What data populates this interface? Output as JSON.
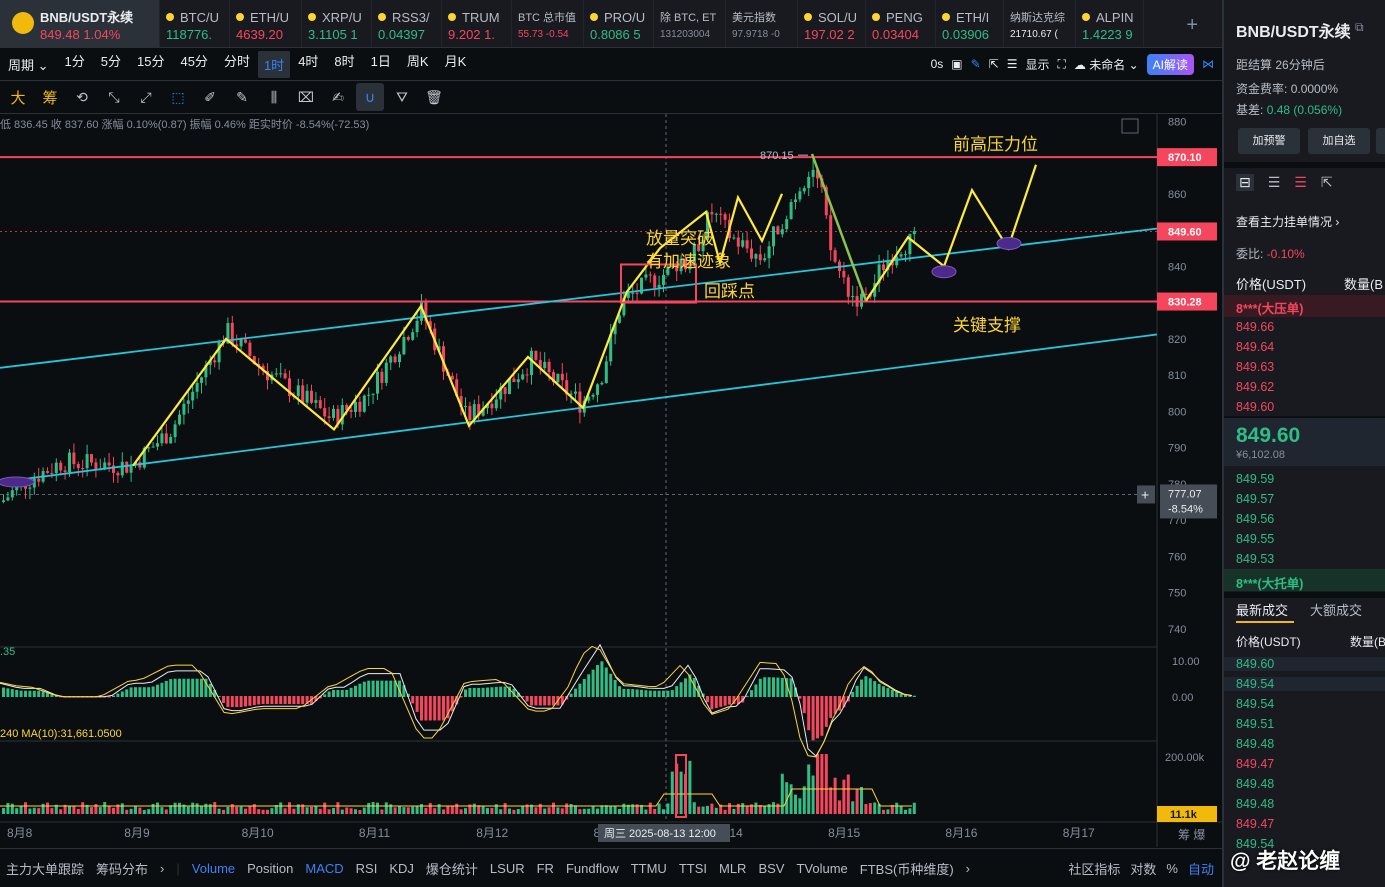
{
  "tickers": [
    {
      "name": "BNB/USDT永续",
      "price": "849.48",
      "change": "1.04%",
      "color": "#f6465d"
    },
    {
      "name": "BTC/U",
      "price": "118776.",
      "color": "#2ebd85"
    },
    {
      "name": "ETH/U",
      "price": "4639.20",
      "color": "#f6465d"
    },
    {
      "name": "XRP/U",
      "price": "3.1105 1",
      "color": "#2ebd85"
    },
    {
      "name": "RSS3/",
      "price": "0.04397",
      "color": "#2ebd85"
    },
    {
      "name": "TRUM",
      "price": "9.202 1.",
      "color": "#f6465d"
    },
    {
      "name": "BTC 总市值",
      "price": "55.73 -0.54",
      "color": "#f6465d"
    },
    {
      "name": "PRO/U",
      "price": "0.8086 5",
      "color": "#2ebd85"
    },
    {
      "name": "除 BTC, ET",
      "price": "131203004",
      "color": "#848e9c"
    },
    {
      "name": "美元指数",
      "price": "97.9718 -0",
      "color": "#848e9c"
    },
    {
      "name": "SOL/U",
      "price": "197.02 2",
      "color": "#f6465d"
    },
    {
      "name": "PENG",
      "price": "0.03404",
      "color": "#f6465d"
    },
    {
      "name": "ETH/I",
      "price": "0.03906",
      "color": "#2ebd85"
    },
    {
      "name": "纳斯达克综",
      "price": "21710.67 (",
      "color": "#eaecef"
    },
    {
      "name": "ALPIN",
      "price": "1.4223 9",
      "color": "#2ebd85"
    }
  ],
  "toolbar": {
    "period_label": "周期",
    "intervals": [
      "1分",
      "5分",
      "15分",
      "45分",
      "分时",
      "1时",
      "4时",
      "8时",
      "1日",
      "周K",
      "月K"
    ],
    "active_interval": "1时",
    "countdown": "0s",
    "display_label": "显示",
    "layout_name": "未命名",
    "ai_label": "AI解读"
  },
  "drawing_tools": {
    "char1": "大",
    "char2": "筹"
  },
  "info_line": {
    "text": "低 836.45  收 837.60  涨幅 0.10%(0.87)  振幅 0.46%  距实时价 -8.54%(-72.53)"
  },
  "chart_data": {
    "type": "candlestick",
    "y_axis": {
      "min": 735,
      "max": 882,
      "ticks": [
        880.0,
        870.0,
        860.0,
        850.0,
        840.0,
        830.0,
        820.0,
        810.0,
        800.0,
        790.0,
        780.0,
        770.0,
        760.0,
        750.0,
        740.0
      ]
    },
    "x_axis": {
      "labels": [
        "8月8",
        "8月9",
        "8月10",
        "8月11",
        "8月12",
        "8月13",
        "8月14",
        "8月15",
        "8月16",
        "8月17"
      ],
      "crosshair_label": "周三 2025-08-13 12:00"
    },
    "price_lines": [
      {
        "value": 870.1,
        "label": "870.10",
        "color": "#f6465d"
      },
      {
        "value": 830.28,
        "label": "830.28",
        "color": "#f6465d"
      },
      {
        "value": 849.6,
        "label": "849.60",
        "color": "#f6465d"
      }
    ],
    "crosshair_price": {
      "value": 777.07,
      "label": "777.07",
      "pct": "-8.54%"
    },
    "high_marker": "870.15",
    "annotations": [
      "前高压力位",
      "放量突破",
      "有加速迹象",
      "回踩点",
      "关键支撑"
    ],
    "macd": {
      "ticks": [
        "10.00",
        "0.00"
      ],
      "left_label": ".35"
    },
    "volume": {
      "label": "240  MA(10):31,661.0500",
      "ticks": [
        "200.00k"
      ],
      "current_label": "11.1k"
    },
    "corner_right": "筹  爆"
  },
  "bottombar": {
    "items": [
      "主力大单跟踪",
      "筹码分布"
    ],
    "indicators": [
      "Volume",
      "Position",
      "MACD",
      "RSI",
      "KDJ",
      "爆仓统计",
      "LSUR",
      "FR",
      "Fundflow",
      "TTMU",
      "TTSI",
      "MLR",
      "BSV",
      "TVolume",
      "FTBS(币种维度)"
    ],
    "active": [
      "Volume",
      "MACD"
    ],
    "right": [
      "社区指标",
      "对数",
      "%",
      "自动"
    ]
  },
  "side": {
    "title": "BNB/USDT永续",
    "settle_label": "距结算",
    "settle_value": "26分钟后",
    "funding_label": "资金费率:",
    "funding_value": "0.0000%",
    "basis_label": "基差:",
    "basis_value": "0.48 (0.056%)",
    "btn_alert": "加预警",
    "btn_fav": "加自选",
    "orderbook_link": "查看主力挂单情况",
    "ratio_label": "委比:",
    "ratio_value": "-0.10%",
    "col_price": "价格(USDT)",
    "col_qty": "数量(B",
    "asks_tag": "8***(大压单)",
    "asks": [
      "849.66",
      "849.64",
      "849.63",
      "849.62",
      "849.60"
    ],
    "last_price": "849.60",
    "last_cny": "¥6,102.08",
    "bids": [
      "849.59",
      "849.57",
      "849.56",
      "849.55",
      "849.53"
    ],
    "bids_tag": "8***(大托单)",
    "trades_tab1": "最新成交",
    "trades_tab2": "大额成交",
    "trades_col_price": "价格(USDT)",
    "trades_col_qty": "数量(B",
    "trades": [
      {
        "p": "849.60",
        "c": "g"
      },
      {
        "p": "849.54",
        "c": "g"
      },
      {
        "p": "849.54",
        "c": "g"
      },
      {
        "p": "849.51",
        "c": "g"
      },
      {
        "p": "849.48",
        "c": "g"
      },
      {
        "p": "849.47",
        "c": "r"
      },
      {
        "p": "849.48",
        "c": "g"
      },
      {
        "p": "849.48",
        "c": "g"
      },
      {
        "p": "849.47",
        "c": "r"
      },
      {
        "p": "849.54",
        "c": "g"
      }
    ]
  },
  "watermark": "@ 老赵论缠"
}
